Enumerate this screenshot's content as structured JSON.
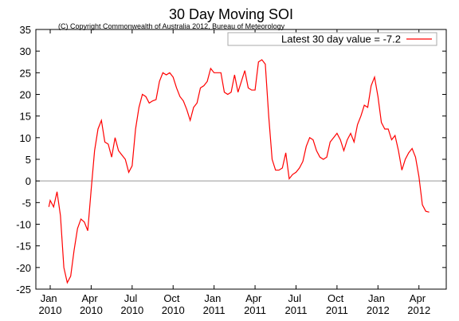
{
  "chart_data": {
    "type": "line",
    "title": "30 Day Moving SOI",
    "subtitle": "(C) Copyright Commonwealth of Australia 2012, Bureau of Meteorology",
    "legend_position": "upper right",
    "zero_line": true,
    "xlim": [
      -1.05,
      29
    ],
    "ylim": [
      -25,
      35
    ],
    "yticks": [
      -25,
      -20,
      -15,
      -10,
      -5,
      0,
      5,
      10,
      15,
      20,
      25,
      30,
      35
    ],
    "xticks": [
      {
        "value": 0,
        "label": "Jan 2010"
      },
      {
        "value": 3,
        "label": "Apr 2010"
      },
      {
        "value": 6,
        "label": "Jul 2010"
      },
      {
        "value": 9,
        "label": "Oct 2010"
      },
      {
        "value": 12,
        "label": "Jan 2011"
      },
      {
        "value": 15,
        "label": "Apr 2011"
      },
      {
        "value": 18,
        "label": "Jul 2011"
      },
      {
        "value": 21,
        "label": "Oct 2011"
      },
      {
        "value": 24,
        "label": "Jan 2012"
      },
      {
        "value": 27,
        "label": "Apr 2012"
      }
    ],
    "x": [
      -0.1,
      0,
      0.25,
      0.5,
      0.75,
      1,
      1.25,
      1.5,
      1.75,
      2,
      2.25,
      2.5,
      2.75,
      3,
      3.25,
      3.5,
      3.75,
      4,
      4.25,
      4.5,
      4.75,
      5,
      5.25,
      5.5,
      5.75,
      6,
      6.25,
      6.5,
      6.75,
      7,
      7.25,
      7.5,
      7.75,
      8,
      8.25,
      8.5,
      8.75,
      9,
      9.25,
      9.5,
      9.75,
      10,
      10.25,
      10.5,
      10.75,
      11,
      11.25,
      11.5,
      11.75,
      12,
      12.25,
      12.5,
      12.75,
      13,
      13.25,
      13.5,
      13.75,
      14,
      14.25,
      14.5,
      14.75,
      15,
      15.25,
      15.5,
      15.75,
      16,
      16.25,
      16.5,
      16.75,
      17,
      17.25,
      17.5,
      17.75,
      18,
      18.25,
      18.5,
      18.75,
      19,
      19.25,
      19.5,
      19.75,
      20,
      20.25,
      20.5,
      20.75,
      21,
      21.25,
      21.5,
      21.75,
      22,
      22.25,
      22.5,
      22.75,
      23,
      23.25,
      23.5,
      23.75,
      24,
      24.25,
      24.5,
      24.75,
      25,
      25.25,
      25.5,
      25.75,
      26,
      26.25,
      26.5,
      26.75,
      27,
      27.25,
      27.5,
      27.75
    ],
    "series": [
      {
        "name": "Latest 30 day value = -7.2",
        "color": "#ff0000",
        "values": [
          -6,
          -4.5,
          -6,
          -2.5,
          -8,
          -20,
          -23.5,
          -22,
          -16,
          -11,
          -8.8,
          -9.5,
          -11.5,
          -2,
          7,
          12,
          14,
          9,
          8.5,
          5.5,
          10,
          7,
          6,
          5,
          2,
          3.5,
          12,
          17,
          20,
          19.5,
          18,
          18.5,
          18.8,
          23,
          25,
          24.5,
          25,
          24,
          21.5,
          19.5,
          18.5,
          16.5,
          14,
          17,
          18,
          21.5,
          22,
          23,
          26,
          25,
          25,
          25,
          20.5,
          20,
          20.5,
          24.5,
          20.5,
          23,
          25.5,
          21.5,
          21,
          21,
          27.5,
          28,
          27,
          15,
          5,
          2.5,
          2.5,
          3,
          6.5,
          0.5,
          1.5,
          2,
          3,
          4.5,
          8,
          10,
          9.5,
          7,
          5.5,
          5,
          5.5,
          9,
          10,
          11,
          9.5,
          7,
          9.5,
          11,
          9,
          13,
          15,
          17.5,
          17,
          22,
          24,
          19.5,
          13.5,
          12,
          12,
          9.5,
          10.5,
          7,
          2.5,
          5,
          6.5,
          7.5,
          5.5,
          1,
          -5.5,
          -7,
          -7.2
        ]
      }
    ]
  }
}
